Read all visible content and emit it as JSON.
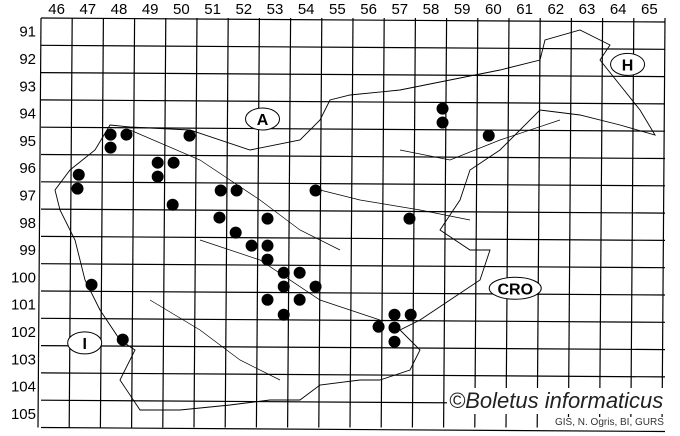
{
  "map": {
    "columns": [
      46,
      47,
      48,
      49,
      50,
      51,
      52,
      53,
      54,
      55,
      56,
      57,
      58,
      59,
      60,
      61,
      62,
      63,
      64,
      65
    ],
    "rows": [
      91,
      92,
      93,
      94,
      95,
      96,
      97,
      98,
      99,
      100,
      101,
      102,
      103,
      104,
      105
    ],
    "country_labels": [
      {
        "text": "A",
        "col": 52.6,
        "row": 94.2
      },
      {
        "text": "H",
        "col": 64.3,
        "row": 92.2
      },
      {
        "text": "I",
        "col": 46.9,
        "row": 102.4
      },
      {
        "text": "CRO",
        "col": 60.7,
        "row": 100.4
      }
    ],
    "records": [
      {
        "col": 47.73,
        "row": 94.77
      },
      {
        "col": 48.24,
        "row": 94.77
      },
      {
        "col": 50.26,
        "row": 94.81
      },
      {
        "col": 47.73,
        "row": 95.25
      },
      {
        "col": 49.24,
        "row": 95.8
      },
      {
        "col": 49.75,
        "row": 95.8
      },
      {
        "col": 46.71,
        "row": 96.24
      },
      {
        "col": 49.24,
        "row": 96.31
      },
      {
        "col": 46.67,
        "row": 96.75
      },
      {
        "col": 51.26,
        "row": 96.82
      },
      {
        "col": 51.77,
        "row": 96.82
      },
      {
        "col": 54.3,
        "row": 96.82
      },
      {
        "col": 49.72,
        "row": 97.34
      },
      {
        "col": 51.22,
        "row": 97.81
      },
      {
        "col": 52.76,
        "row": 97.85
      },
      {
        "col": 57.31,
        "row": 97.85
      },
      {
        "col": 51.74,
        "row": 98.36
      },
      {
        "col": 52.25,
        "row": 98.84
      },
      {
        "col": 52.76,
        "row": 98.84
      },
      {
        "col": 52.76,
        "row": 99.35
      },
      {
        "col": 53.28,
        "row": 99.83
      },
      {
        "col": 53.79,
        "row": 99.83
      },
      {
        "col": 53.28,
        "row": 100.34
      },
      {
        "col": 54.3,
        "row": 100.34
      },
      {
        "col": 52.76,
        "row": 100.82
      },
      {
        "col": 53.79,
        "row": 100.82
      },
      {
        "col": 53.28,
        "row": 101.37
      },
      {
        "col": 47.12,
        "row": 100.27
      },
      {
        "col": 48.12,
        "row": 102.28
      },
      {
        "col": 58.37,
        "row": 93.82
      },
      {
        "col": 58.37,
        "row": 94.33
      },
      {
        "col": 59.85,
        "row": 94.81
      },
      {
        "col": 56.32,
        "row": 101.81
      },
      {
        "col": 56.83,
        "row": 101.37
      },
      {
        "col": 57.35,
        "row": 101.37
      },
      {
        "col": 56.83,
        "row": 101.84
      },
      {
        "col": 56.83,
        "row": 102.36
      }
    ],
    "marker_color": "#000000"
  },
  "copyright": "©Boletus informaticus",
  "credit": "GIS, N. Ogris, BI, GURS"
}
